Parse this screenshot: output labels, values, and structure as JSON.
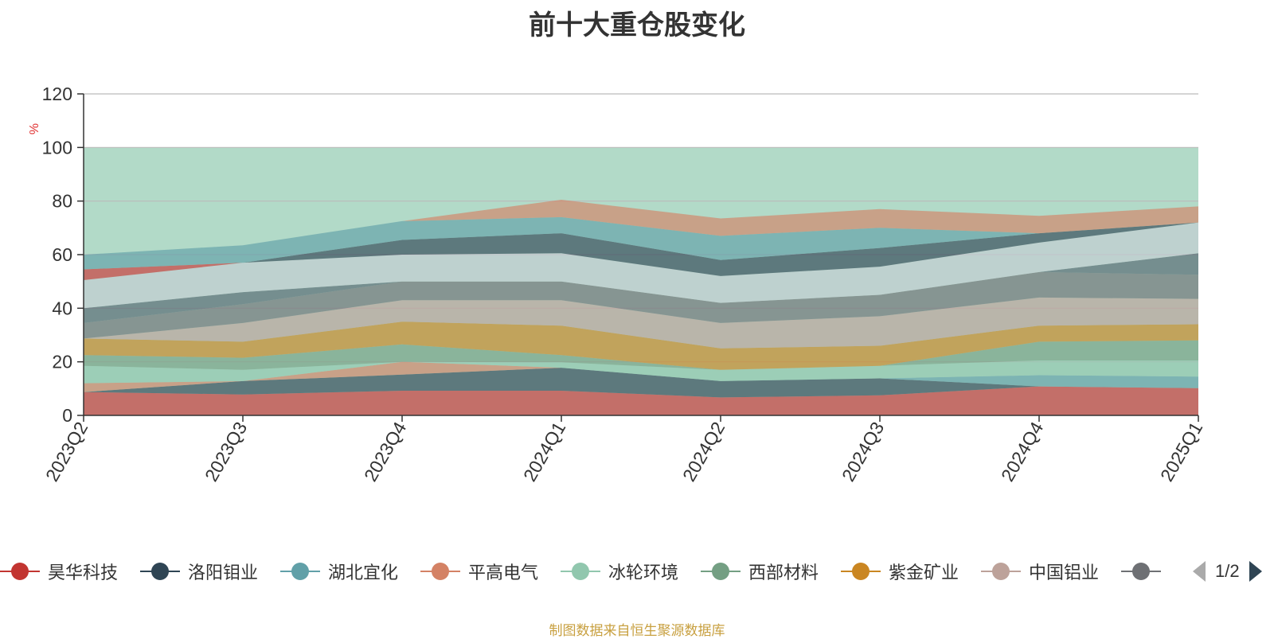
{
  "title": "前十大重仓股变化",
  "footer": "制图数据来自恒生聚源数据库",
  "legend_page": "1/2",
  "chart_data": {
    "type": "area",
    "title": "前十大重仓股变化",
    "ylabel": "%",
    "ylim": [
      0,
      120
    ],
    "yticks": [
      0,
      20,
      40,
      60,
      80,
      100,
      120
    ],
    "categories": [
      "2023Q2",
      "2023Q3",
      "2023Q4",
      "2024Q1",
      "2024Q2",
      "2024Q3",
      "2024Q4",
      "2025Q1"
    ],
    "background_band": {
      "from": 0,
      "to": 100,
      "color": "#b2dac8"
    },
    "layers": [
      {
        "color": "#cd3636",
        "bottom": [
          0,
          0,
          0,
          0,
          0,
          0,
          0,
          0
        ],
        "top": [
          8.7,
          7.8,
          9.2,
          9.2,
          6.7,
          7.5,
          10.8,
          10.2
        ]
      },
      {
        "color": "#2f4554",
        "bottom": [
          8.7,
          7.8,
          9.2,
          9.2,
          6.7,
          7.5,
          10.8,
          10.2
        ],
        "top": [
          8.7,
          12.8,
          15.2,
          17.8,
          12.8,
          13.8,
          10.8,
          10.2
        ]
      },
      {
        "color": "#61a0a8",
        "bottom": [
          8.7,
          12.8,
          15.2,
          17.8,
          12.8,
          13.8,
          10.8,
          10.2
        ],
        "top": [
          8.7,
          12.8,
          15.2,
          17.8,
          12.8,
          13.8,
          15.0,
          14.5
        ]
      },
      {
        "color": "#d48265",
        "bottom": [
          8.7,
          12.8,
          15.2,
          17.8,
          12.8,
          13.8,
          15.0,
          14.5
        ],
        "top": [
          12.0,
          12.8,
          20.0,
          17.8,
          12.8,
          13.8,
          15.0,
          14.5
        ]
      },
      {
        "color": "#91c7ae",
        "bottom": [
          12.0,
          12.8,
          20.0,
          17.8,
          12.8,
          13.8,
          15.0,
          14.5
        ],
        "top": [
          18.5,
          17.0,
          20.0,
          19.8,
          17.0,
          18.5,
          20.5,
          20.5
        ]
      },
      {
        "color": "#749f83",
        "bottom": [
          18.5,
          17.0,
          20.0,
          19.8,
          17.0,
          18.5,
          20.5,
          20.5
        ],
        "top": [
          22.5,
          21.5,
          26.5,
          22.5,
          17.0,
          18.5,
          27.5,
          28.0
        ]
      },
      {
        "color": "#ca8622",
        "bottom": [
          22.5,
          21.5,
          26.5,
          22.5,
          17.0,
          18.5,
          27.5,
          28.0
        ],
        "top": [
          28.7,
          27.5,
          35.0,
          33.5,
          25.0,
          26.0,
          33.5,
          34.0
        ]
      },
      {
        "color": "#bda29a",
        "bottom": [
          28.7,
          27.5,
          35.0,
          33.5,
          25.0,
          26.0,
          33.5,
          34.0
        ],
        "top": [
          28.7,
          34.5,
          43.0,
          43.0,
          34.5,
          37.0,
          44.0,
          43.5
        ]
      },
      {
        "color": "#6e7074",
        "bottom": [
          28.7,
          34.5,
          43.0,
          43.0,
          34.5,
          37.0,
          44.0,
          43.5
        ],
        "top": [
          34.5,
          41.5,
          50.0,
          50.0,
          42.0,
          45.0,
          53.5,
          52.5
        ]
      },
      {
        "color": "#546570",
        "bottom": [
          34.5,
          41.5,
          50.0,
          50.0,
          42.0,
          45.0,
          53.5,
          52.5
        ],
        "top": [
          40.0,
          46.0,
          50.0,
          50.0,
          42.0,
          45.0,
          53.5,
          60.5
        ]
      },
      {
        "color": "#c4ccd3",
        "bottom": [
          40.0,
          46.0,
          50.0,
          50.0,
          42.0,
          45.0,
          53.5,
          60.5
        ],
        "top": [
          50.5,
          57.0,
          60.0,
          60.5,
          52.0,
          55.5,
          64.5,
          72.0
        ]
      },
      {
        "color": "#cd3636",
        "bottom": [
          50.5,
          57.0,
          60.0,
          60.5,
          52.0,
          55.5,
          64.5,
          72.0
        ],
        "top": [
          54.5,
          57.0,
          60.0,
          60.5,
          52.0,
          55.5,
          64.5,
          72.0
        ]
      },
      {
        "color": "#2f4554",
        "bottom": [
          54.5,
          57.0,
          60.0,
          60.5,
          52.0,
          55.5,
          64.5,
          72.0
        ],
        "top": [
          54.5,
          57.0,
          65.5,
          68.0,
          58.0,
          62.5,
          68.0,
          72.0
        ]
      },
      {
        "color": "#61a0a8",
        "bottom": [
          54.5,
          57.0,
          65.5,
          68.0,
          58.0,
          62.5,
          68.0,
          72.0
        ],
        "top": [
          60.0,
          63.5,
          72.5,
          74.0,
          67.0,
          70.0,
          68.0,
          72.0
        ]
      },
      {
        "color": "#d48265",
        "bottom": [
          60.0,
          63.5,
          72.5,
          74.0,
          67.0,
          70.0,
          68.0,
          72.0
        ],
        "top": [
          60.0,
          63.5,
          72.5,
          80.5,
          73.5,
          77.0,
          74.5,
          78.0
        ]
      }
    ],
    "legend": [
      {
        "name": "昊华科技",
        "color": "#c23531"
      },
      {
        "name": "洛阳钼业",
        "color": "#2f4554"
      },
      {
        "name": "湖北宜化",
        "color": "#61a0a8"
      },
      {
        "name": "平高电气",
        "color": "#d48265"
      },
      {
        "name": "冰轮环境",
        "color": "#91c7ae"
      },
      {
        "name": "西部材料",
        "color": "#749f83"
      },
      {
        "name": "紫金矿业",
        "color": "#ca8622"
      },
      {
        "name": "中国铝业",
        "color": "#bda29a"
      },
      {
        "name": "",
        "color": "#6e7074"
      }
    ]
  }
}
